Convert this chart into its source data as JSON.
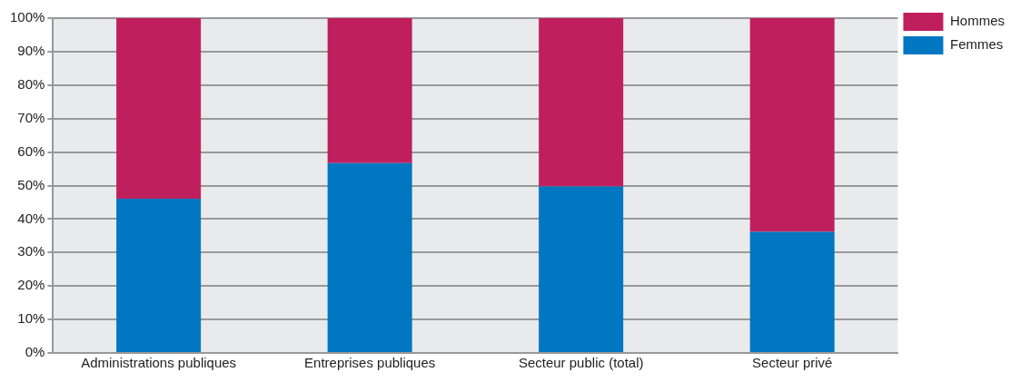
{
  "chart_data": {
    "type": "bar",
    "stacked": true,
    "categories": [
      "Administrations publiques",
      "Entreprises publiques",
      "Secteur public (total)",
      "Secteur privé"
    ],
    "series": [
      {
        "name": "Femmes",
        "color": "#0077c0",
        "values": [
          46.1,
          56.7,
          49.7,
          36.2
        ]
      },
      {
        "name": "Hommes",
        "color": "#c01f5e",
        "values": [
          53.9,
          43.3,
          50.3,
          63.8
        ]
      }
    ],
    "ylim": [
      0,
      100
    ],
    "yticks": [
      {
        "value": 0,
        "label": "0%"
      },
      {
        "value": 10,
        "label": "10%"
      },
      {
        "value": 20,
        "label": "20%"
      },
      {
        "value": 30,
        "label": "30%"
      },
      {
        "value": 40,
        "label": "40%"
      },
      {
        "value": 50,
        "label": "50%"
      },
      {
        "value": 60,
        "label": "60%"
      },
      {
        "value": 70,
        "label": "70%"
      },
      {
        "value": 80,
        "label": "80%"
      },
      {
        "value": 90,
        "label": "90%"
      },
      {
        "value": 100,
        "label": "100%"
      }
    ],
    "grid": "y",
    "legend": "top right"
  }
}
